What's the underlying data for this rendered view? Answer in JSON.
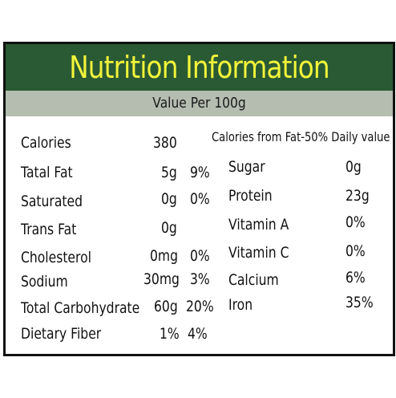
{
  "title": "Nutrition Information",
  "subtitle": "Value Per 100g",
  "right_header": "Calories from Fat-50% Daily value",
  "left_rows": [
    {
      "label": "Calories",
      "amount": "380",
      "daily": ""
    },
    {
      "label": "Tatal Fat",
      "amount": "5g",
      "daily": "9%"
    },
    {
      "label": "Saturated",
      "amount": "0g",
      "daily": "0%"
    },
    {
      "label": "Trans Fat",
      "amount": "0g",
      "daily": ""
    },
    {
      "label": "Cholesterol",
      "amount": "0mg",
      "daily": "0%"
    },
    {
      "label": "Sodium",
      "amount": "30mg",
      "daily": "3%"
    },
    {
      "label": "Total Carbohydrate",
      "amount": "60g",
      "daily": "20%"
    },
    {
      "label": "Dietary Fiber",
      "amount": "1%",
      "daily": "4%"
    }
  ],
  "right_rows": [
    {
      "label": "Sugar",
      "value": "0g"
    },
    {
      "label": "Protein",
      "value": "23g"
    },
    {
      "label": "Vitamin A",
      "value": "0%"
    },
    {
      "label": "Vitamin C",
      "value": "0%"
    },
    {
      "label": "Calcium",
      "value": "6%"
    },
    {
      "label": "Iron",
      "value": "35%"
    }
  ],
  "colors": {
    "header_bg": "#2a5a33",
    "title_text": "#f2f43a",
    "subheader_bg": "#b4bdb0"
  }
}
